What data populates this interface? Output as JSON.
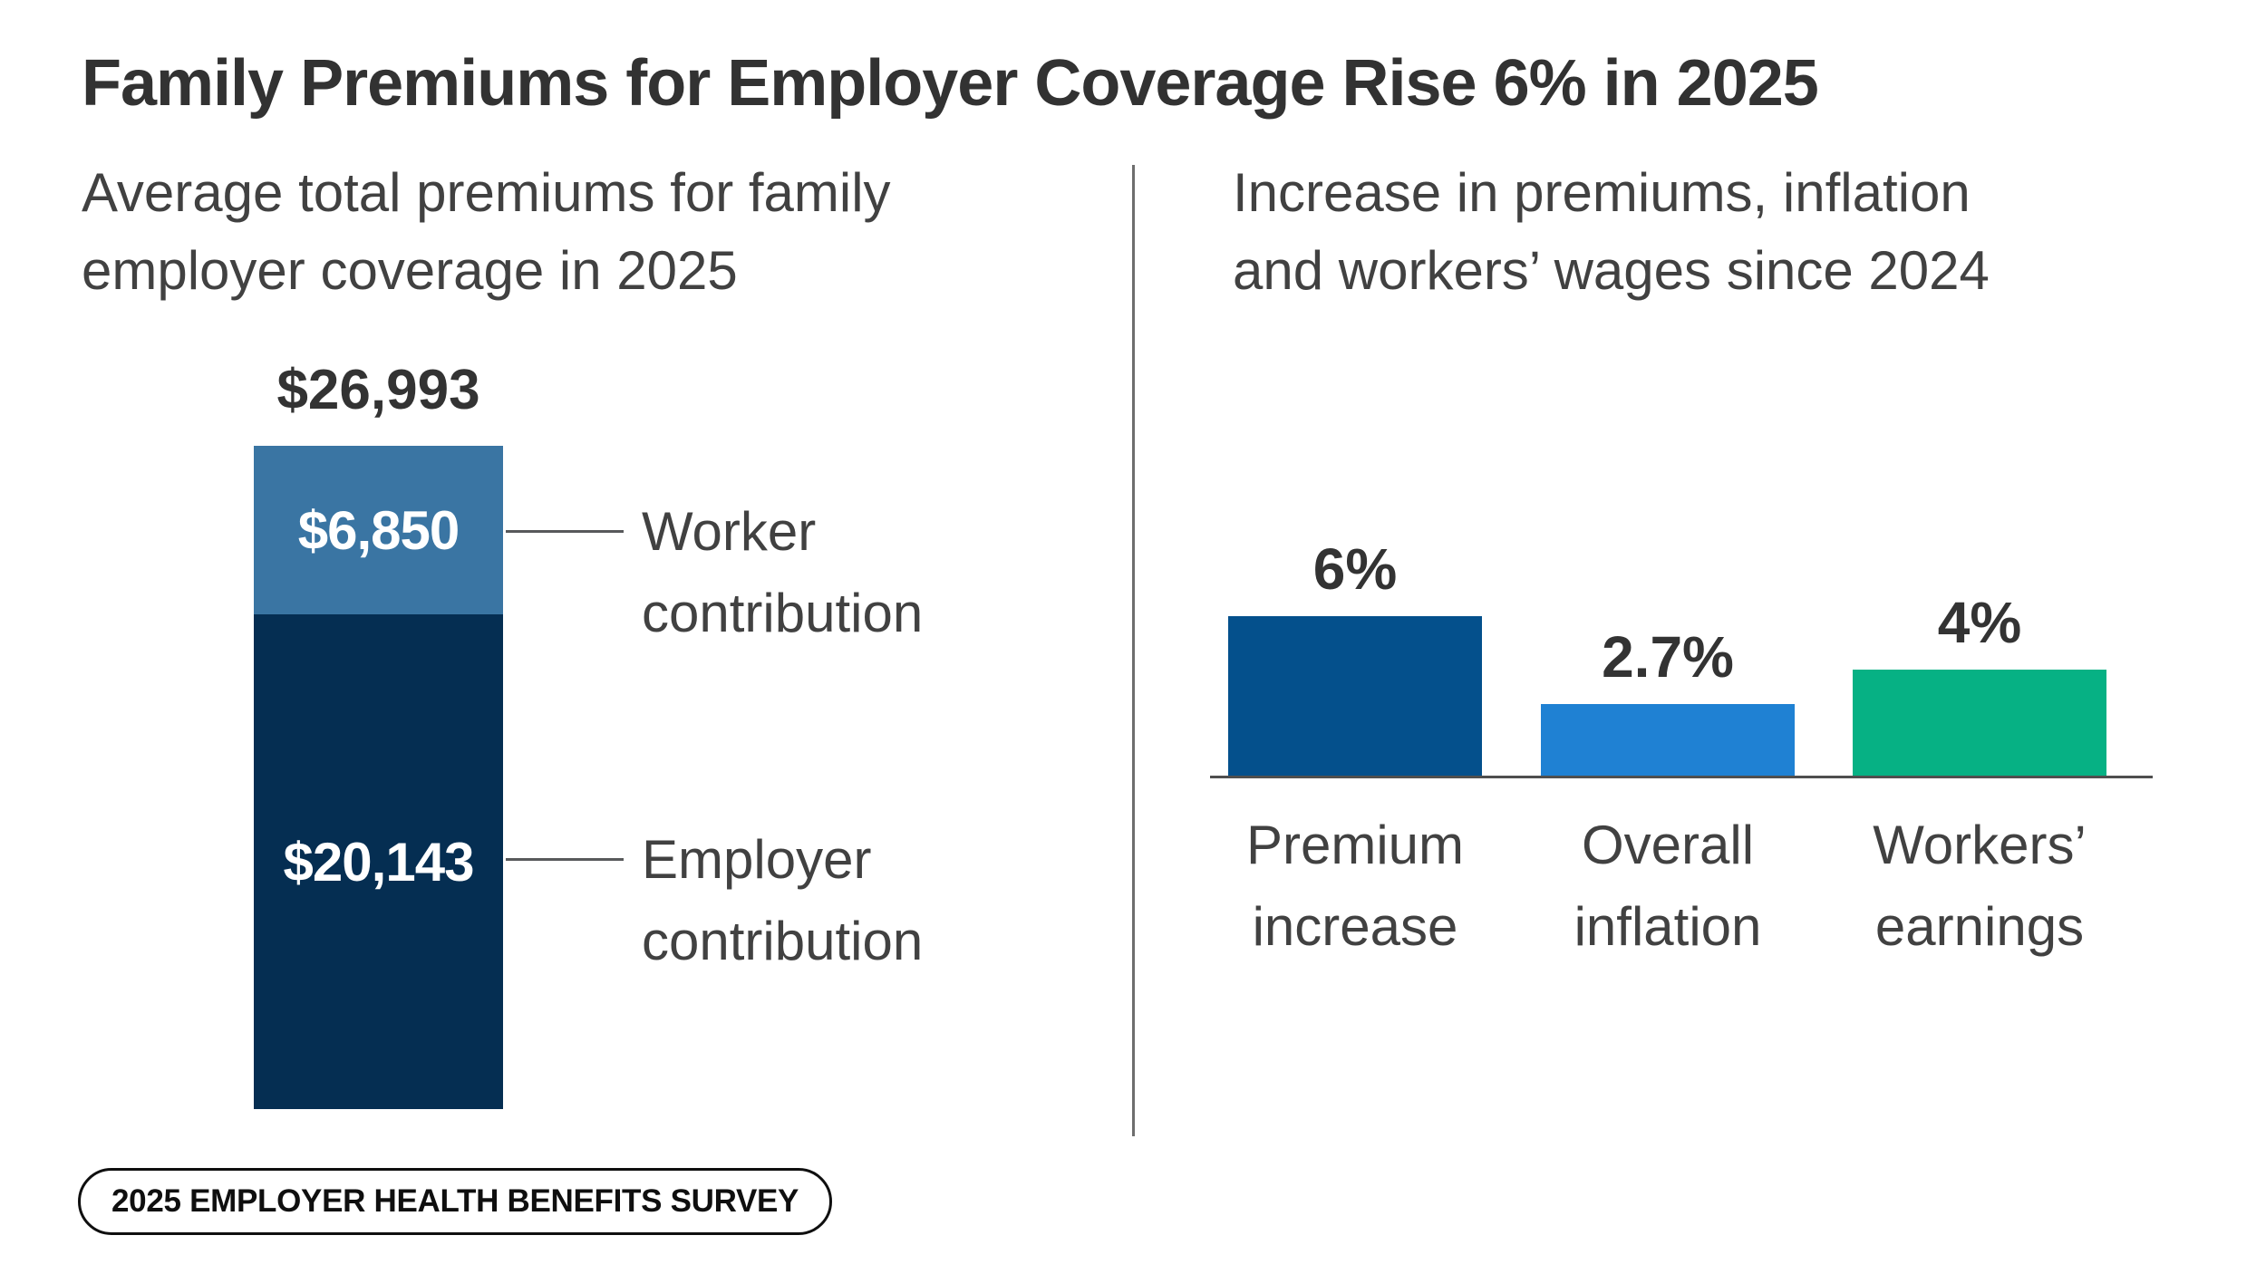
{
  "title": "Family Premiums for Employer Coverage Rise 6% in 2025",
  "badge_label": "2025 EMPLOYER HEALTH BENEFITS SURVEY",
  "left_chart": {
    "subtitle_line1": "Average total premiums for family",
    "subtitle_line2": "employer coverage in 2025",
    "total_label": "$26,993",
    "worker": {
      "value_label": "$6,850",
      "label_line1": "Worker",
      "label_line2": "contribution"
    },
    "employer": {
      "value_label": "$20,143",
      "label_line1": "Employer",
      "label_line2": "contribution"
    }
  },
  "right_chart": {
    "subtitle_line1": "Increase in premiums, inflation",
    "subtitle_line2": "and workers’ wages since 2024",
    "bars": [
      {
        "value_label": "6%",
        "label_line1": "Premium",
        "label_line2": "increase"
      },
      {
        "value_label": "2.7%",
        "label_line1": "Overall",
        "label_line2": "inflation"
      },
      {
        "value_label": "4%",
        "label_line1": "Workers’",
        "label_line2": "earnings"
      }
    ]
  },
  "colors": {
    "worker_blue": "#3a75a3",
    "employer_navy": "#052e52",
    "premium_blue": "#04508c",
    "inflation_blue": "#1f81d3",
    "earnings_green": "#06b184",
    "text_dark": "#333333",
    "text_gray": "#414141",
    "line_gray": "#58595b"
  },
  "chart_data": [
    {
      "type": "bar",
      "subtype": "stacked-single-column",
      "title": "Average total premiums for family employer coverage in 2025",
      "categories": [
        "Family employer coverage, 2025"
      ],
      "series": [
        {
          "name": "Worker contribution",
          "values": [
            6850
          ],
          "color": "#3a75a3"
        },
        {
          "name": "Employer contribution",
          "values": [
            20143
          ],
          "color": "#052e52"
        }
      ],
      "total": 26993,
      "total_label": "$26,993",
      "unit": "USD",
      "grid": false,
      "legend_position": "right-callouts"
    },
    {
      "type": "bar",
      "title": "Increase in premiums, inflation and workers’ wages since 2024",
      "categories": [
        "Premium increase",
        "Overall inflation",
        "Workers’ earnings"
      ],
      "values": [
        6,
        2.7,
        4
      ],
      "value_labels": [
        "6%",
        "2.7%",
        "4%"
      ],
      "colors": [
        "#04508c",
        "#1f81d3",
        "#06b184"
      ],
      "unit": "%",
      "ylim": [
        0,
        6
      ],
      "xlabel": "",
      "ylabel": "",
      "grid": false
    }
  ]
}
